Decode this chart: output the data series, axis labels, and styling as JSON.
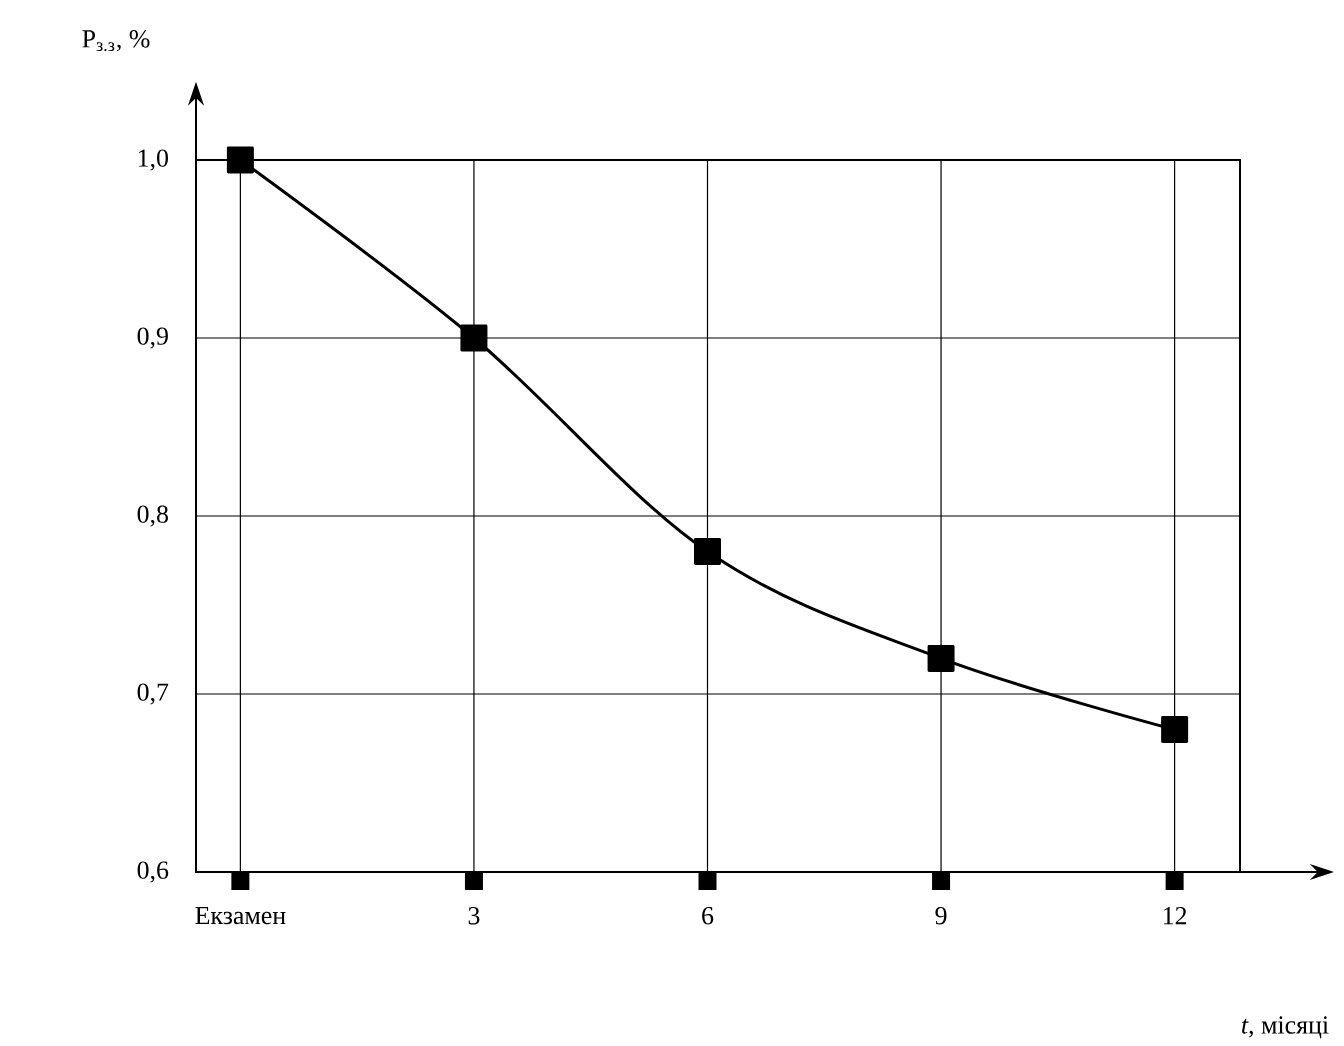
{
  "chart_data": {
    "type": "line",
    "xlabel": "*t*, місяці",
    "ylabel": "P$_{з.з}$, %",
    "categories": [
      "Екзамен",
      "3",
      "6",
      "9",
      "12"
    ],
    "values": [
      1.0,
      0.9,
      0.78,
      0.72,
      0.68
    ],
    "color": "#000000",
    "ylim": [
      0.6,
      1.0
    ],
    "yticks": [
      {
        "value": 0.6,
        "label": "0,6"
      },
      {
        "value": 0.7,
        "label": "0,7"
      },
      {
        "value": 0.8,
        "label": "0,8"
      },
      {
        "value": 0.9,
        "label": "0,9"
      },
      {
        "value": 1.0,
        "label": "1,0"
      }
    ],
    "grid": true,
    "marker": "square",
    "line_style": "solid"
  }
}
